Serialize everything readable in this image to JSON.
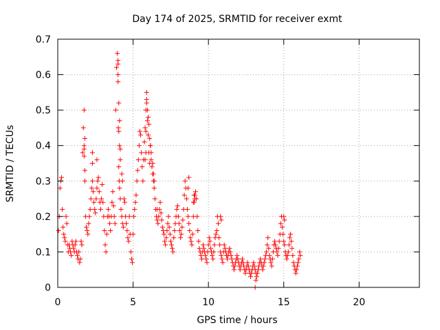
{
  "chart_data": {
    "type": "scatter",
    "title": "Day 174 of 2025, SRMTID for receiver exmt",
    "xlabel": "GPS time / hours",
    "ylabel": "SRMTID / TECUs",
    "xlim": [
      0,
      24
    ],
    "ylim": [
      0,
      0.7
    ],
    "xticks": [
      0,
      5,
      10,
      15,
      20
    ],
    "yticks": [
      0,
      0.1,
      0.2,
      0.3,
      0.4,
      0.5,
      0.6,
      0.7
    ],
    "xtick_labels": [
      "0",
      "5",
      "10",
      "15",
      "20"
    ],
    "ytick_labels": [
      "0",
      "0.1",
      "0.2",
      "0.3",
      "0.4",
      "0.5",
      "0.6",
      "0.7"
    ],
    "grid": true,
    "marker": "+",
    "series": [
      {
        "name": "SRMTID",
        "color": "#ff0000",
        "x": [
          0.05,
          0.1,
          0.15,
          0.2,
          0.25,
          0.3,
          0.35,
          0.4,
          0.45,
          0.5,
          0.55,
          0.6,
          0.65,
          0.7,
          0.75,
          0.8,
          0.85,
          0.9,
          0.95,
          1.0,
          1.05,
          1.1,
          1.15,
          1.2,
          1.25,
          1.3,
          1.35,
          1.4,
          1.45,
          1.5,
          1.55,
          1.6,
          1.65,
          1.7,
          1.75,
          1.8,
          1.85,
          1.9,
          1.95,
          2.0,
          2.05,
          2.1,
          2.15,
          2.2,
          2.25,
          2.3,
          2.35,
          2.4,
          2.45,
          2.5,
          2.55,
          2.6,
          2.65,
          2.7,
          2.75,
          2.8,
          2.85,
          2.9,
          2.95,
          3.0,
          3.05,
          3.1,
          3.15,
          3.2,
          3.25,
          3.3,
          3.35,
          3.4,
          3.45,
          3.5,
          3.55,
          3.6,
          3.65,
          3.7,
          3.75,
          3.8,
          3.85,
          3.9,
          3.95,
          4.0,
          4.02,
          4.05,
          4.08,
          4.1,
          4.15,
          4.2,
          4.25,
          4.3,
          4.35,
          4.4,
          4.45,
          4.5,
          4.55,
          4.6,
          4.65,
          4.7,
          4.75,
          4.8,
          4.85,
          4.9,
          4.95,
          5.0,
          5.05,
          5.1,
          5.15,
          5.2,
          5.25,
          5.3,
          5.35,
          5.4,
          5.45,
          5.5,
          5.55,
          5.6,
          5.65,
          5.7,
          5.75,
          5.8,
          5.85,
          5.9,
          5.95,
          6.0,
          6.05,
          6.1,
          6.15,
          6.2,
          6.25,
          6.3,
          6.35,
          6.4,
          6.45,
          6.5,
          6.55,
          6.6,
          6.65,
          6.7,
          6.75,
          6.8,
          6.85,
          6.9,
          6.95,
          7.0,
          7.05,
          7.1,
          7.15,
          7.2,
          7.25,
          7.3,
          7.35,
          7.4,
          7.45,
          7.5,
          7.55,
          7.6,
          7.65,
          7.7,
          7.75,
          7.8,
          7.85,
          7.9,
          7.95,
          8.0,
          8.05,
          8.1,
          8.15,
          8.2,
          8.25,
          8.3,
          8.35,
          8.4,
          8.45,
          8.5,
          8.55,
          8.6,
          8.65,
          8.7,
          8.75,
          8.8,
          8.85,
          8.9,
          8.95,
          9.0,
          9.05,
          9.1,
          9.15,
          9.2,
          9.25,
          9.3,
          9.35,
          9.4,
          9.45,
          9.5,
          9.55,
          9.6,
          9.65,
          9.7,
          9.75,
          9.8,
          9.85,
          9.9,
          9.95,
          10.0,
          10.05,
          10.1,
          10.15,
          10.2,
          10.25,
          10.3,
          10.35,
          10.4,
          10.45,
          10.5,
          10.55,
          10.6,
          10.65,
          10.7,
          10.75,
          10.8,
          10.85,
          10.9,
          10.95,
          11.0,
          11.05,
          11.1,
          11.15,
          11.2,
          11.25,
          11.3,
          11.35,
          11.4,
          11.45,
          11.5,
          11.55,
          11.6,
          11.65,
          11.7,
          11.75,
          11.8,
          11.85,
          11.9,
          11.95,
          12.0,
          12.05,
          12.1,
          12.15,
          12.2,
          12.25,
          12.3,
          12.35,
          12.4,
          12.45,
          12.5,
          12.55,
          12.6,
          12.65,
          12.7,
          12.75,
          12.8,
          12.85,
          12.9,
          12.95,
          13.0,
          13.05,
          13.1,
          13.15,
          13.2,
          13.25,
          13.3,
          13.35,
          13.4,
          13.45,
          13.5,
          13.55,
          13.6,
          13.65,
          13.7,
          13.75,
          13.8,
          13.85,
          13.9,
          13.95,
          14.0,
          14.05,
          14.1,
          14.15,
          14.2,
          14.25,
          14.3,
          14.35,
          14.4,
          14.45,
          14.5,
          14.55,
          14.6,
          14.65,
          14.7,
          14.75,
          14.8,
          14.85,
          14.9,
          14.95,
          15.0,
          15.05,
          15.1,
          15.15,
          15.2,
          15.25,
          15.3,
          15.35,
          15.4,
          15.45,
          15.5,
          15.55,
          15.6,
          15.65,
          15.7,
          15.75,
          15.8,
          15.85,
          15.9,
          15.95,
          16.0,
          16.05,
          16.1,
          1.75,
          1.75,
          1.75,
          1.8,
          1.8,
          2.3,
          2.3,
          2.6,
          4.0,
          4.0,
          4.0,
          4.05,
          4.05,
          4.1,
          4.1,
          4.15,
          4.15,
          4.25,
          4.3,
          5.8,
          5.85,
          5.85,
          5.9,
          5.9,
          5.95,
          6.0,
          6.05,
          6.1,
          6.15,
          6.2,
          6.3,
          6.35,
          6.4,
          6.6,
          8.65,
          8.7,
          9.0,
          9.05,
          9.1,
          10.8,
          10.85,
          13.1,
          13.15,
          15.0,
          15.05
        ],
        "y": [
          0.16,
          0.2,
          0.28,
          0.3,
          0.31,
          0.22,
          0.17,
          0.15,
          0.14,
          0.13,
          0.2,
          0.18,
          0.12,
          0.1,
          0.12,
          0.11,
          0.1,
          0.09,
          0.13,
          0.12,
          0.11,
          0.1,
          0.12,
          0.13,
          0.1,
          0.09,
          0.08,
          0.1,
          0.07,
          0.08,
          0.13,
          0.12,
          0.38,
          0.45,
          0.4,
          0.3,
          0.2,
          0.17,
          0.16,
          0.15,
          0.18,
          0.2,
          0.22,
          0.25,
          0.28,
          0.3,
          0.27,
          0.24,
          0.22,
          0.21,
          0.25,
          0.28,
          0.3,
          0.31,
          0.27,
          0.24,
          0.22,
          0.25,
          0.29,
          0.24,
          0.2,
          0.16,
          0.12,
          0.1,
          0.15,
          0.2,
          0.22,
          0.2,
          0.18,
          0.16,
          0.2,
          0.24,
          0.27,
          0.23,
          0.2,
          0.18,
          0.5,
          0.62,
          0.66,
          0.58,
          0.45,
          0.34,
          0.3,
          0.28,
          0.25,
          0.22,
          0.2,
          0.18,
          0.17,
          0.25,
          0.24,
          0.2,
          0.18,
          0.16,
          0.14,
          0.13,
          0.2,
          0.15,
          0.1,
          0.08,
          0.07,
          0.15,
          0.2,
          0.22,
          0.24,
          0.26,
          0.3,
          0.33,
          0.36,
          0.4,
          0.44,
          0.43,
          0.38,
          0.34,
          0.3,
          0.36,
          0.41,
          0.45,
          0.5,
          0.53,
          0.47,
          0.43,
          0.38,
          0.35,
          0.4,
          0.36,
          0.34,
          0.32,
          0.3,
          0.28,
          0.25,
          0.22,
          0.2,
          0.19,
          0.18,
          0.2,
          0.22,
          0.24,
          0.21,
          0.19,
          0.17,
          0.16,
          0.15,
          0.13,
          0.12,
          0.14,
          0.16,
          0.18,
          0.2,
          0.17,
          0.15,
          0.13,
          0.12,
          0.11,
          0.1,
          0.14,
          0.16,
          0.18,
          0.2,
          0.22,
          0.23,
          0.2,
          0.18,
          0.16,
          0.14,
          0.15,
          0.17,
          0.19,
          0.22,
          0.26,
          0.3,
          0.28,
          0.25,
          0.22,
          0.2,
          0.18,
          0.16,
          0.14,
          0.13,
          0.12,
          0.15,
          0.2,
          0.24,
          0.26,
          0.27,
          0.25,
          0.2,
          0.16,
          0.13,
          0.11,
          0.1,
          0.09,
          0.08,
          0.1,
          0.12,
          0.11,
          0.1,
          0.09,
          0.08,
          0.07,
          0.1,
          0.12,
          0.14,
          0.13,
          0.11,
          0.1,
          0.09,
          0.08,
          0.1,
          0.12,
          0.14,
          0.15,
          0.16,
          0.2,
          0.18,
          0.14,
          0.12,
          0.1,
          0.09,
          0.08,
          0.07,
          0.1,
          0.12,
          0.11,
          0.1,
          0.09,
          0.08,
          0.09,
          0.1,
          0.11,
          0.1,
          0.09,
          0.08,
          0.07,
          0.06,
          0.05,
          0.06,
          0.07,
          0.08,
          0.09,
          0.08,
          0.07,
          0.06,
          0.05,
          0.06,
          0.07,
          0.08,
          0.07,
          0.06,
          0.05,
          0.04,
          0.05,
          0.06,
          0.07,
          0.06,
          0.05,
          0.04,
          0.03,
          0.04,
          0.05,
          0.06,
          0.07,
          0.06,
          0.05,
          0.04,
          0.03,
          0.04,
          0.05,
          0.06,
          0.07,
          0.08,
          0.07,
          0.06,
          0.05,
          0.06,
          0.07,
          0.08,
          0.09,
          0.1,
          0.12,
          0.14,
          0.11,
          0.09,
          0.08,
          0.07,
          0.06,
          0.08,
          0.1,
          0.12,
          0.13,
          0.12,
          0.11,
          0.1,
          0.09,
          0.11,
          0.13,
          0.15,
          0.18,
          0.2,
          0.17,
          0.15,
          0.13,
          0.12,
          0.1,
          0.09,
          0.08,
          0.09,
          0.1,
          0.12,
          0.14,
          0.15,
          0.13,
          0.11,
          0.09,
          0.07,
          0.06,
          0.05,
          0.04,
          0.05,
          0.06,
          0.07,
          0.08,
          0.1,
          0.09,
          0.37,
          0.39,
          0.5,
          0.42,
          0.33,
          0.38,
          0.35,
          0.36,
          0.6,
          0.63,
          0.64,
          0.52,
          0.44,
          0.47,
          0.4,
          0.39,
          0.36,
          0.32,
          0.3,
          0.36,
          0.44,
          0.38,
          0.52,
          0.55,
          0.5,
          0.48,
          0.46,
          0.42,
          0.4,
          0.38,
          0.35,
          0.32,
          0.3,
          0.22,
          0.28,
          0.31,
          0.24,
          0.26,
          0.25,
          0.2,
          0.19,
          0.0,
          0.02,
          0.2,
          0.19
        ]
      }
    ]
  }
}
